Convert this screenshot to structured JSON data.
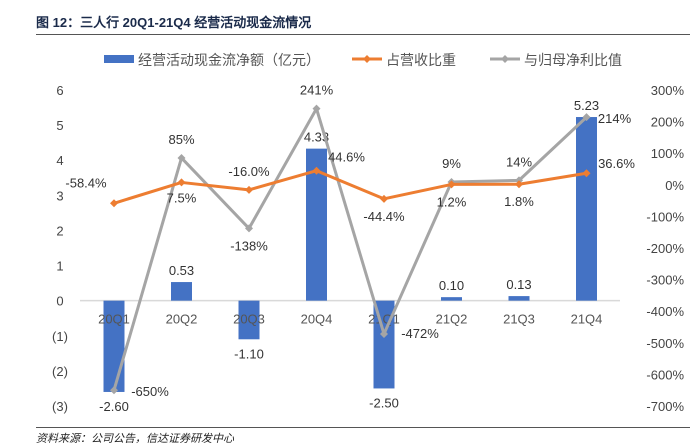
{
  "title": "图 12：三人行 20Q1-21Q4 经营活动现金流情况",
  "source": "资料来源：公司公告，信达证券研发中心",
  "chart_data": {
    "type": "bar+line",
    "categories": [
      "20Q1",
      "20Q2",
      "20Q3",
      "20Q4",
      "21Q1",
      "21Q2",
      "21Q3",
      "21Q4"
    ],
    "series": [
      {
        "name": "经营活动现金流净额（亿元）",
        "type": "bar",
        "axis": "left",
        "color": "#4472C4",
        "values": [
          -2.6,
          0.53,
          -1.1,
          4.33,
          -2.5,
          0.1,
          0.13,
          5.23
        ],
        "labels": [
          "-2.60",
          "0.53",
          "-1.10",
          "4.33",
          "-2.50",
          "0.10",
          "0.13",
          "5.23"
        ]
      },
      {
        "name": "占营收比重",
        "type": "line",
        "axis": "right",
        "color": "#ED7D31",
        "values": [
          -58.4,
          7.5,
          -16.0,
          44.6,
          -44.4,
          1.2,
          1.8,
          36.6
        ],
        "labels": [
          "-58.4%",
          "7.5%",
          "-16.0%",
          "44.6%",
          "-44.4%",
          "1.2%",
          "1.8%",
          "36.6%"
        ]
      },
      {
        "name": "与归母净利比值",
        "type": "line",
        "axis": "right",
        "color": "#A5A5A5",
        "values": [
          -650,
          85,
          -138,
          241,
          -472,
          9,
          14,
          214
        ],
        "labels": [
          "-650%",
          "85%",
          "-138%",
          "241%",
          "-472%",
          "9%",
          "14%",
          "214%"
        ]
      }
    ],
    "left_axis": {
      "range": [
        -3,
        6
      ],
      "ticks": [
        "6",
        "5",
        "4",
        "3",
        "2",
        "1",
        "0",
        "(1)",
        "(2)",
        "(3)"
      ]
    },
    "right_axis": {
      "range": [
        -700,
        300
      ],
      "unit": "%",
      "ticks": [
        "300%",
        "200%",
        "100%",
        "0%",
        "-100%",
        "-200%",
        "-300%",
        "-400%",
        "-500%",
        "-600%",
        "-700%"
      ]
    },
    "legend": "top",
    "grid": false
  }
}
